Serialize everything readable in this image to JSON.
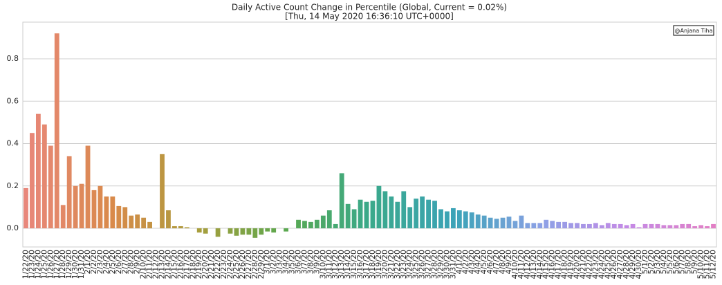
{
  "chart_data": {
    "type": "bar",
    "title": "Daily Active Count Change in Percentile (Global, Current = 0.02%)",
    "subtitle": "[Thu, 14 May 2020 16:36:10 UTC+0000]",
    "annotation": "@Anjana Tiha",
    "categories": [
      "1/22/20",
      "1/23/20",
      "1/24/20",
      "1/25/20",
      "1/26/20",
      "1/27/20",
      "1/28/20",
      "1/29/20",
      "1/30/20",
      "1/31/20",
      "2/1/20",
      "2/2/20",
      "2/3/20",
      "2/4/20",
      "2/5/20",
      "2/6/20",
      "2/7/20",
      "2/8/20",
      "2/9/20",
      "2/10/20",
      "2/11/20",
      "2/12/20",
      "2/13/20",
      "2/14/20",
      "2/15/20",
      "2/16/20",
      "2/17/20",
      "2/18/20",
      "2/19/20",
      "2/20/20",
      "2/21/20",
      "2/22/20",
      "2/23/20",
      "2/24/20",
      "2/25/20",
      "2/26/20",
      "2/27/20",
      "2/28/20",
      "2/29/20",
      "3/1/20",
      "3/2/20",
      "3/3/20",
      "3/4/20",
      "3/5/20",
      "3/6/20",
      "3/7/20",
      "3/8/20",
      "3/9/20",
      "3/10/20",
      "3/11/20",
      "3/12/20",
      "3/13/20",
      "3/14/20",
      "3/15/20",
      "3/16/20",
      "3/17/20",
      "3/18/20",
      "3/19/20",
      "3/20/20",
      "3/21/20",
      "3/22/20",
      "3/23/20",
      "3/24/20",
      "3/25/20",
      "3/26/20",
      "3/27/20",
      "3/28/20",
      "3/29/20",
      "3/30/20",
      "3/31/20",
      "4/1/20",
      "4/2/20",
      "4/3/20",
      "4/4/20",
      "4/5/20",
      "4/6/20",
      "4/7/20",
      "4/8/20",
      "4/9/20",
      "4/10/20",
      "4/11/20",
      "4/12/20",
      "4/13/20",
      "4/14/20",
      "4/15/20",
      "4/16/20",
      "4/17/20",
      "4/18/20",
      "4/19/20",
      "4/20/20",
      "4/21/20",
      "4/22/20",
      "4/23/20",
      "4/24/20",
      "4/25/20",
      "4/26/20",
      "4/27/20",
      "4/28/20",
      "4/29/20",
      "4/30/20",
      "5/1/20",
      "5/2/20",
      "5/3/20",
      "5/4/20",
      "5/5/20",
      "5/6/20",
      "5/7/20",
      "5/8/20",
      "5/9/20",
      "5/10/20",
      "5/11/20",
      "5/12/20"
    ],
    "values": [
      0.19,
      0.45,
      0.54,
      0.49,
      0.39,
      0.92,
      0.11,
      0.34,
      0.2,
      0.21,
      0.39,
      0.18,
      0.2,
      0.15,
      0.15,
      0.105,
      0.1,
      0.06,
      0.065,
      0.05,
      0.03,
      0.0,
      0.35,
      0.085,
      0.01,
      0.01,
      0.005,
      0.0,
      -0.02,
      -0.025,
      0.0,
      -0.04,
      0.0,
      -0.025,
      -0.035,
      -0.03,
      -0.03,
      -0.045,
      -0.03,
      -0.015,
      -0.02,
      0.0,
      -0.015,
      0.0,
      0.04,
      0.035,
      0.03,
      0.04,
      0.06,
      0.085,
      0.02,
      0.26,
      0.115,
      0.09,
      0.135,
      0.125,
      0.13,
      0.2,
      0.175,
      0.15,
      0.125,
      0.175,
      0.1,
      0.14,
      0.15,
      0.135,
      0.13,
      0.09,
      0.08,
      0.095,
      0.085,
      0.08,
      0.075,
      0.065,
      0.06,
      0.05,
      0.045,
      0.05,
      0.055,
      0.035,
      0.06,
      0.025,
      0.025,
      0.025,
      0.04,
      0.035,
      0.03,
      0.03,
      0.025,
      0.025,
      0.02,
      0.02,
      0.025,
      0.015,
      0.025,
      0.02,
      0.02,
      0.015,
      0.02,
      0.005,
      0.02,
      0.02,
      0.02,
      0.015,
      0.015,
      0.015,
      0.02,
      0.02,
      0.01,
      0.015,
      0.01,
      0.02
    ],
    "palette": [
      "#e8877b",
      "#d98a4a",
      "#a99e3c",
      "#5ba84e",
      "#3aa98a",
      "#3ca3b8",
      "#8da1e6",
      "#c48ae6",
      "#e27fc5"
    ],
    "ylim": [
      -0.088,
      0.973
    ],
    "yticks": [
      {
        "value": 0,
        "label": "0.0"
      },
      0.2,
      0.4,
      0.6,
      0.8
    ],
    "grid": true
  }
}
